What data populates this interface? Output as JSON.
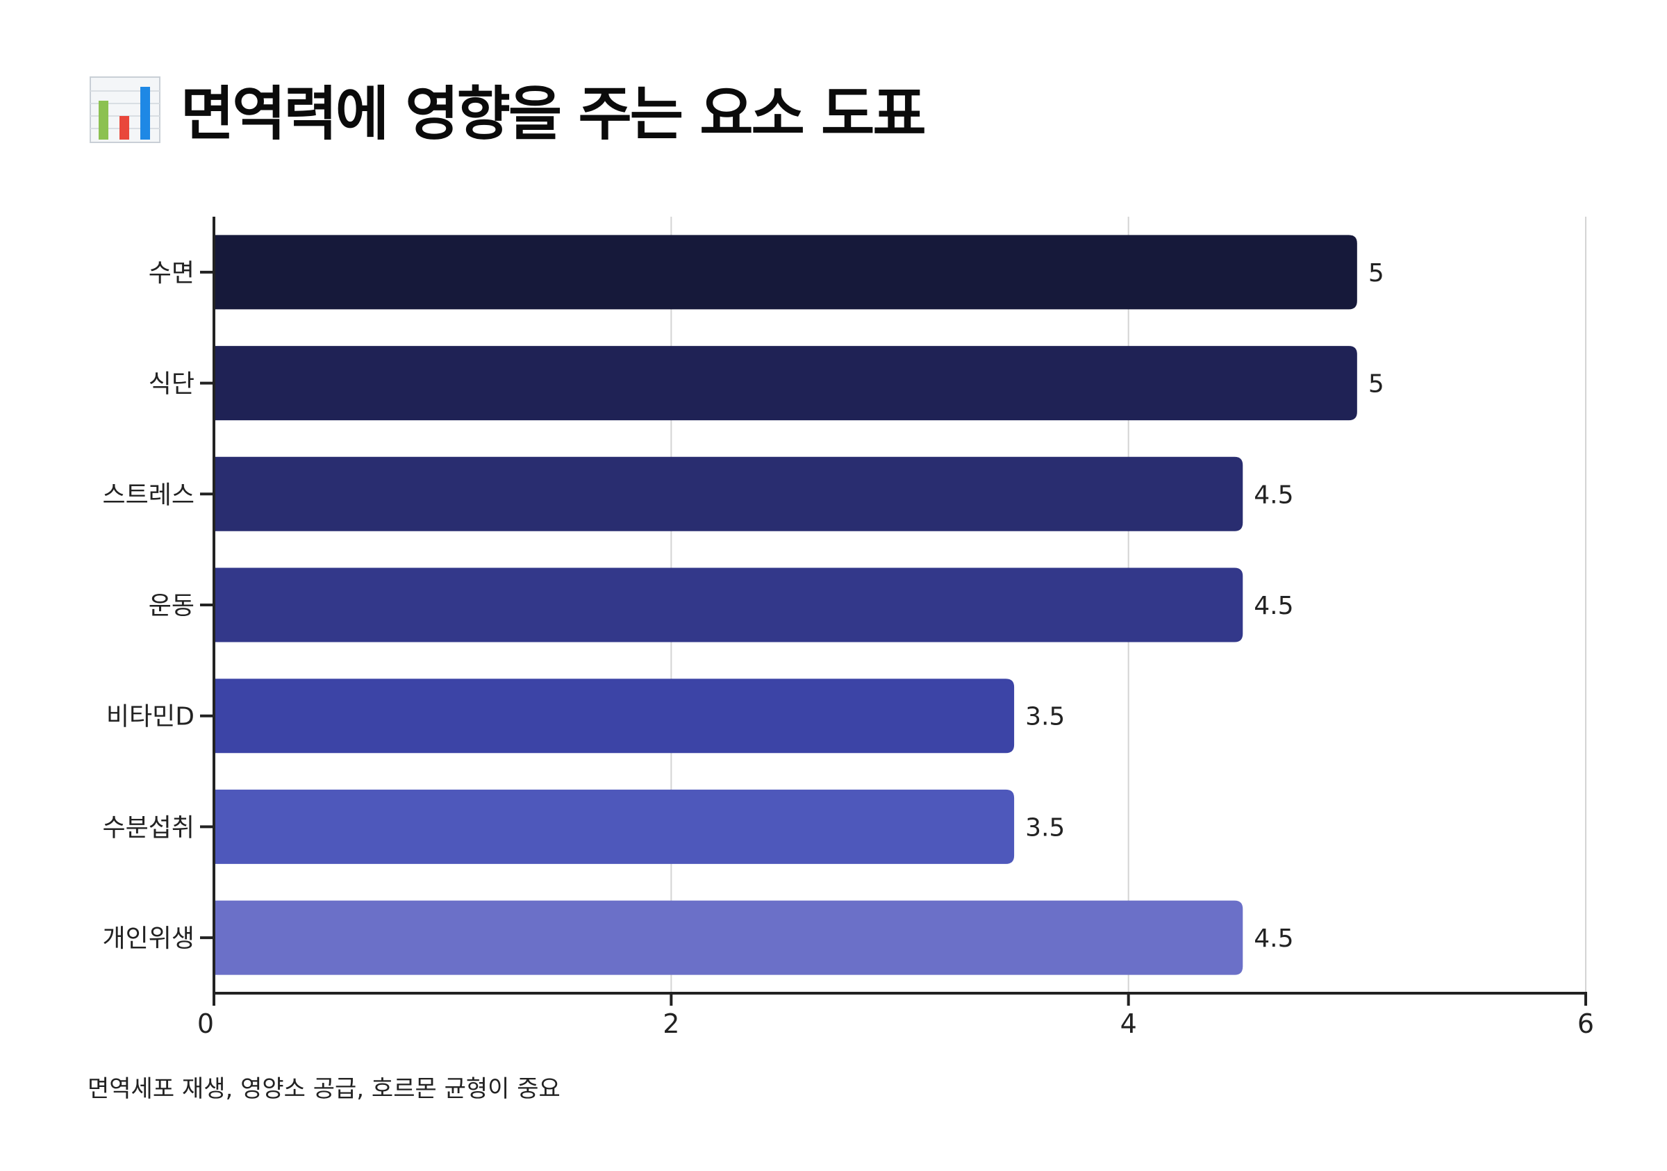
{
  "header": {
    "icon": "bar-chart-icon",
    "title": "면역력에 영향을 주는 요소 도표"
  },
  "chart_data": {
    "type": "bar",
    "orientation": "horizontal",
    "categories": [
      "수면",
      "식단",
      "스트레스",
      "운동",
      "비타민D",
      "수분섭취",
      "개인위생"
    ],
    "values": [
      5,
      5,
      4.5,
      4.5,
      3.5,
      3.5,
      4.5
    ],
    "value_labels": [
      "5",
      "5",
      "4.5",
      "4.5",
      "3.5",
      "3.5",
      "4.5"
    ],
    "xlim": [
      0,
      6
    ],
    "x_ticks": [
      0,
      2,
      4,
      6
    ],
    "x_tick_labels": [
      "0",
      "2",
      "4",
      "6"
    ],
    "grid": "vertical",
    "colors": [
      "#16193a",
      "#1f2255",
      "#292d70",
      "#33388a",
      "#3c44a6",
      "#4e58bb",
      "#6b70c8"
    ],
    "xlabel": "",
    "ylabel": ""
  },
  "footnote": "면역세포 재생, 영양소 공급, 호르몬 균형이 중요"
}
